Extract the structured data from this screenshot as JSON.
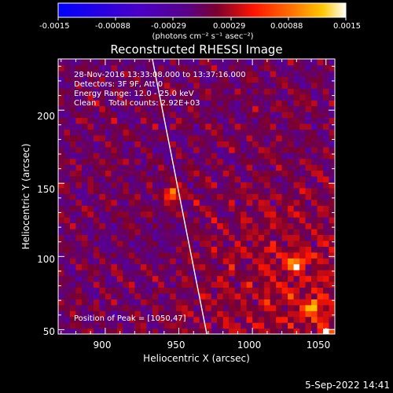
{
  "colorbar": {
    "ticks": [
      "-0.0015",
      "-0.00088",
      "-0.00029",
      "0.00029",
      "0.00088",
      "0.0015"
    ],
    "units": "(photons cm⁻² s⁻¹ asec⁻²)"
  },
  "annotations": {
    "time": "28-Nov-2016 13:33:08.000 to 13:37:16.000",
    "detectors": "Detectors: 3F 9F, Att 0",
    "energy": "Energy Range: 12.0 - 25.0 keV",
    "clean": "Clean     Total counts: 2.92E+03",
    "peak": "Position of Peak = [1050,47]"
  },
  "footer": {
    "timestamp": "5-Sep-2022 14:41"
  },
  "chart_data": {
    "type": "heatmap",
    "title": "Reconstructed RHESSI Image",
    "xlabel": "Heliocentric X (arcsec)",
    "ylabel": "Heliocentric Y (arcsec)",
    "x_ticks": [
      900,
      950,
      1000,
      1050
    ],
    "y_ticks": [
      50,
      100,
      150,
      200
    ],
    "xlim": [
      868,
      1056
    ],
    "ylim": [
      47,
      235
    ],
    "zlim": [
      -0.0015,
      0.0015
    ],
    "limb_line": [
      [
        932,
        235
      ],
      [
        969,
        47
      ]
    ],
    "peak": [
      1050,
      47
    ],
    "bright_sources": [
      [
        946,
        143
      ],
      [
        1030,
        95
      ],
      [
        1040,
        65
      ],
      [
        1050,
        47
      ]
    ]
  }
}
